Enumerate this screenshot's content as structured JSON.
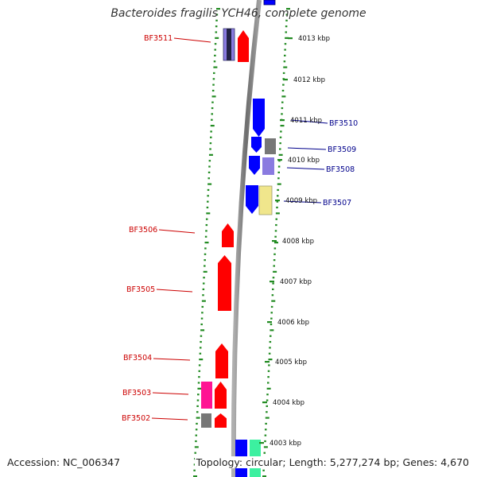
{
  "title": "Bacteroides fragilis YCH46, complete genome",
  "footer": {
    "accession": "Accession: NC_006347",
    "topology": "Topology: circular; Length: 5,277,274 bp; Genes: 4,670"
  },
  "colors": {
    "backbone": "#888888",
    "tick_green": "#228b22",
    "minus_label": "#cc0000",
    "plus_label": "#00008b",
    "gene_red": "#ff0000",
    "gene_blue": "#0000ff",
    "gene_gray": "#777777",
    "gene_pink": "#ff1493",
    "gene_lavender": "#8a7be0",
    "gene_yellow": "#f0e68c",
    "gene_green": "#3cf0a0"
  },
  "kbp_ticks": [
    "4013 kbp",
    "4012 kbp",
    "4011 kbp",
    "4010 kbp",
    "4009 kbp",
    "4008 kbp",
    "4007 kbp",
    "4006 kbp",
    "4005 kbp",
    "4004 kbp",
    "4003 kbp"
  ],
  "gene_labels": {
    "minus": [
      "BF3511",
      "BF3506",
      "BF3505",
      "BF3504",
      "BF3503",
      "BF3502"
    ],
    "plus": [
      "BF3510",
      "BF3509",
      "BF3508",
      "BF3507"
    ]
  }
}
